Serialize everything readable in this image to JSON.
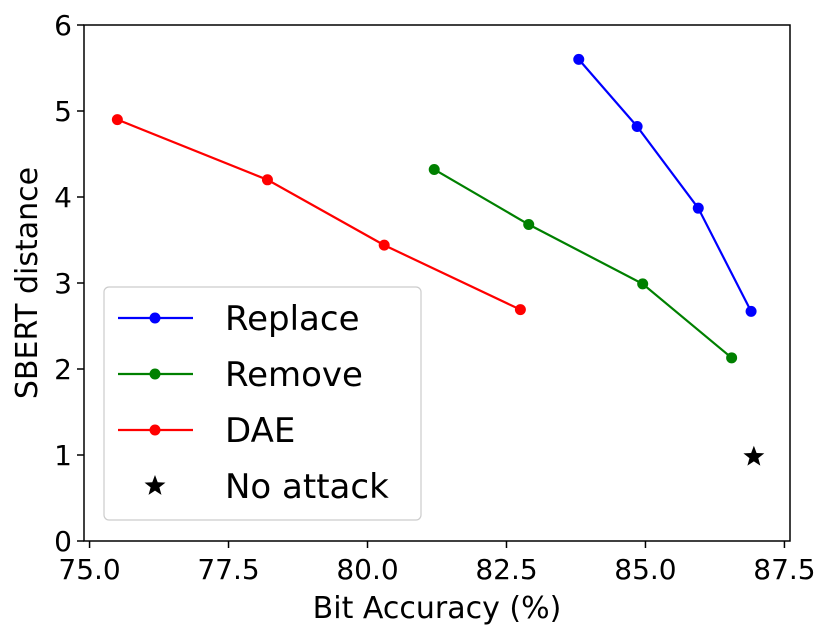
{
  "chart_data": {
    "type": "line",
    "xlabel": "Bit Accuracy (%)",
    "ylabel": "SBERT distance",
    "xlim": [
      74.9,
      87.6
    ],
    "ylim": [
      0,
      6
    ],
    "xticks": [
      75.0,
      77.5,
      80.0,
      82.5,
      85.0,
      87.5
    ],
    "xtick_labels": [
      "75.0",
      "77.5",
      "80.0",
      "82.5",
      "85.0",
      "87.5"
    ],
    "yticks": [
      0,
      1,
      2,
      3,
      4,
      5,
      6
    ],
    "ytick_labels": [
      "0",
      "1",
      "2",
      "3",
      "4",
      "5",
      "6"
    ],
    "grid": false,
    "legend_position": "lower-left",
    "series": [
      {
        "name": "Replace",
        "color": "#0000ff",
        "marker": "circle",
        "x": [
          83.8,
          84.85,
          85.95,
          86.9
        ],
        "y": [
          5.6,
          4.82,
          3.87,
          2.67
        ]
      },
      {
        "name": "Remove",
        "color": "#008000",
        "marker": "circle",
        "x": [
          81.2,
          82.9,
          84.95,
          86.55
        ],
        "y": [
          4.32,
          3.68,
          2.99,
          2.13
        ]
      },
      {
        "name": "DAE",
        "color": "#ff0000",
        "marker": "circle",
        "x": [
          75.5,
          78.2,
          80.3,
          82.75
        ],
        "y": [
          4.9,
          4.2,
          3.44,
          2.69
        ]
      },
      {
        "name": "No attack",
        "color": "#000000",
        "marker": "star",
        "x": [
          86.95
        ],
        "y": [
          0.98
        ]
      }
    ]
  }
}
